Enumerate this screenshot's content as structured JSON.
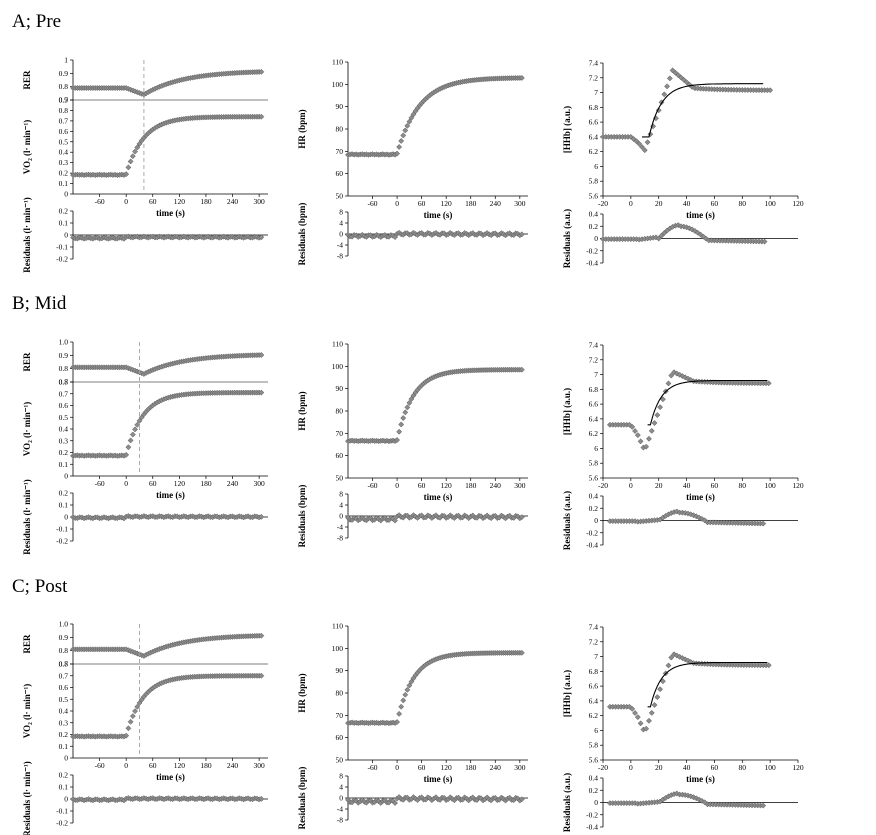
{
  "colors": {
    "marker_fill": "#8c8c8c",
    "marker_stroke": "#555555",
    "axis": "#000000",
    "fit": "#000000",
    "dashed": "#a0a0a0"
  },
  "chart_data": [
    {
      "panel_title": "A; Pre",
      "charts": [
        {
          "type": "scatter",
          "name": "RER",
          "ylabel": "RER",
          "ylim": [
            0.7,
            1.0
          ],
          "yticks": [
            "0.7",
            "0.8",
            "0.9",
            "1"
          ],
          "xlim": [
            -120,
            320
          ],
          "xticklabels": [],
          "marker_visible": true,
          "series": [
            {
              "name": "RER",
              "shape": "baseline-dip-rise",
              "base": 0.79,
              "end": 0.92,
              "dip": 0.05,
              "x_start": -120,
              "x_end": 305
            }
          ]
        },
        {
          "type": "scatter",
          "name": "VO2",
          "ylabel": "VO₂ (l· min⁻¹)",
          "ylim": [
            0,
            0.9
          ],
          "yticks": [
            "0",
            "0.1",
            "0.2",
            "0.3",
            "0.4",
            "0.5",
            "0.6",
            "0.7",
            "0.8",
            "0.9"
          ],
          "xlim": [
            -120,
            320
          ],
          "xticks": [
            -60,
            0,
            60,
            120,
            180,
            240,
            300
          ],
          "xlabel": "time (s)",
          "dashed_line_x": 40,
          "marker_visible": true,
          "series": [
            {
              "name": "VO2",
              "shape": "mono-exp",
              "base": 0.19,
              "end": 0.74,
              "x_on": 0,
              "tau": 40,
              "x_start": -120,
              "x_end": 305
            }
          ]
        },
        {
          "type": "scatter",
          "name": "VO2 residuals",
          "ylabel": "Residuals (l· min⁻¹)",
          "ylim": [
            -0.2,
            0.2
          ],
          "yticks": [
            "0.2",
            "0.1",
            "0",
            "-0.1",
            "-0.2"
          ],
          "xlim": [
            -120,
            320
          ],
          "marker_visible": true,
          "series": [
            {
              "name": "residuals",
              "shape": "noise",
              "base": -0.015,
              "amp": 0.01,
              "x_start": -120,
              "x_end": 305
            }
          ]
        },
        {
          "type": "scatter",
          "name": "HR",
          "ylabel": "HR (bpm)",
          "ylim": [
            50,
            110
          ],
          "yticks": [
            "50",
            "60",
            "70",
            "80",
            "90",
            "100",
            "110"
          ],
          "xlim": [
            -120,
            320
          ],
          "xticks": [
            -60,
            0,
            60,
            120,
            180,
            240,
            300
          ],
          "xlabel": "time (s)",
          "marker_visible": true,
          "series": [
            {
              "name": "HR",
              "shape": "mono-exp",
              "base": 69,
              "end": 103,
              "x_on": 0,
              "tau": 55,
              "x_start": -120,
              "x_end": 305
            }
          ]
        },
        {
          "type": "scatter",
          "name": "HR residuals",
          "ylabel": "Residuals (bpm)",
          "ylim": [
            -8,
            8
          ],
          "yticks": [
            "8",
            "4",
            "0",
            "-4",
            "-8"
          ],
          "xlim": [
            -120,
            320
          ],
          "marker_visible": true,
          "series": [
            {
              "name": "residuals",
              "shape": "noise",
              "base": 0.2,
              "amp": 0.8,
              "x_start": -120,
              "x_end": 305
            }
          ]
        },
        {
          "type": "scatter",
          "name": "HHb",
          "ylabel": "[HHb] (a.u.)",
          "ylim": [
            5.6,
            7.4
          ],
          "yticks": [
            "5.6",
            "5.8",
            "6",
            "6.2",
            "6.4",
            "6.6",
            "6.8",
            "7",
            "7.2",
            "7.4"
          ],
          "xlim": [
            -20,
            120
          ],
          "xticks": [
            -20,
            0,
            20,
            40,
            60,
            80,
            100,
            120
          ],
          "xlabel": "time (s)",
          "marker_visible": true,
          "series": [
            {
              "name": "HHb",
              "shape": "hhb-overshoot",
              "base": 6.4,
              "dip": 6.22,
              "peak": 7.3,
              "end": 7.03,
              "x_start": -20,
              "x_end": 100
            },
            {
              "name": "fit",
              "line": true,
              "shape": "hhb-fit",
              "base": 6.4,
              "end": 7.12,
              "x_on": 13,
              "tau": 9,
              "x_start": 8,
              "x_end": 95
            }
          ]
        },
        {
          "type": "scatter",
          "name": "HHb residuals",
          "ylabel": "Residuals (a.u.)",
          "ylim": [
            -0.4,
            0.4
          ],
          "yticks": [
            "0.4",
            "0.2",
            "0",
            "-0.2",
            "-0.4"
          ],
          "xlim": [
            -20,
            120
          ],
          "marker_visible": true,
          "zero_line": true,
          "series": [
            {
              "name": "residuals",
              "shape": "hhb-res",
              "amp": 0.22,
              "x_start": -20,
              "x_end": 96
            }
          ]
        }
      ]
    },
    {
      "panel_title": "B; Mid",
      "charts": [
        {
          "type": "scatter",
          "name": "RER",
          "ylabel": "RER",
          "ylim": [
            0.7,
            1.0
          ],
          "yticks": [
            "0.7",
            "0.8",
            "0.9",
            "1.0"
          ],
          "xlim": [
            -120,
            320
          ],
          "xticklabels": [],
          "marker_visible": true,
          "series": [
            {
              "name": "RER",
              "shape": "baseline-dip-rise",
              "base": 0.81,
              "end": 0.91,
              "dip": 0.05,
              "x_start": -120,
              "x_end": 305
            }
          ]
        },
        {
          "type": "scatter",
          "name": "VO2",
          "ylabel": "VO₂ (l· min⁻¹)",
          "ylim": [
            0,
            0.8
          ],
          "yticks": [
            "0",
            "0.1",
            "0.2",
            "0.3",
            "0.4",
            "0.5",
            "0.6",
            "0.7",
            "0.8"
          ],
          "xlim": [
            -120,
            320
          ],
          "xticks": [
            -60,
            0,
            60,
            120,
            180,
            240,
            300
          ],
          "xlabel": "time (s)",
          "dashed_line_x": 30,
          "marker_visible": true,
          "series": [
            {
              "name": "VO2",
              "shape": "mono-exp",
              "base": 0.18,
              "end": 0.71,
              "x_on": 0,
              "tau": 38,
              "x_start": -120,
              "x_end": 305
            }
          ]
        },
        {
          "type": "scatter",
          "name": "VO2 residuals",
          "ylabel": "Residuals (l· min⁻¹)",
          "ylim": [
            -0.2,
            0.2
          ],
          "yticks": [
            "0.2",
            "0.1",
            "0",
            "-0.1",
            "-0.2"
          ],
          "xlim": [
            -120,
            320
          ],
          "marker_visible": true,
          "series": [
            {
              "name": "residuals",
              "shape": "noise",
              "base": 0.005,
              "amp": 0.01,
              "x_start": -120,
              "x_end": 305
            }
          ]
        },
        {
          "type": "scatter",
          "name": "HR",
          "ylabel": "HR (bpm)",
          "ylim": [
            50,
            110
          ],
          "yticks": [
            "50",
            "60",
            "70",
            "80",
            "90",
            "100",
            "110"
          ],
          "xlim": [
            -120,
            320
          ],
          "xticks": [
            -60,
            0,
            60,
            120,
            180,
            240,
            300
          ],
          "xlabel": "time (s)",
          "marker_visible": true,
          "series": [
            {
              "name": "HR",
              "shape": "mono-exp",
              "base": 67,
              "end": 98.5,
              "x_on": 0,
              "tau": 40,
              "x_start": -120,
              "x_end": 305
            }
          ]
        },
        {
          "type": "scatter",
          "name": "HR residuals",
          "ylabel": "Residuals (bpm)",
          "ylim": [
            -8,
            8
          ],
          "yticks": [
            "8",
            "4",
            "0",
            "-4",
            "-8"
          ],
          "xlim": [
            -120,
            320
          ],
          "marker_visible": true,
          "series": [
            {
              "name": "residuals",
              "shape": "noise",
              "base": 0.0,
              "amp": 1.0,
              "x_start": -120,
              "x_end": 305
            }
          ]
        },
        {
          "type": "scatter",
          "name": "HHb",
          "ylabel": "[HHb] (a.u.)",
          "ylim": [
            5.6,
            7.4
          ],
          "yticks": [
            "5.6",
            "5.8",
            "6",
            "6.2",
            "6.4",
            "6.6",
            "6.8",
            "7",
            "7.2",
            "7.4"
          ],
          "xlim": [
            -20,
            120
          ],
          "xticks": [
            -20,
            0,
            20,
            40,
            60,
            80,
            100,
            120
          ],
          "xlabel": "time (s)",
          "marker_visible": true,
          "series": [
            {
              "name": "HHb",
              "shape": "hhb-overshoot",
              "base": 6.32,
              "dip": 5.97,
              "peak": 7.04,
              "end": 6.88,
              "x_start": -15,
              "x_end": 100
            },
            {
              "name": "fit",
              "line": true,
              "shape": "hhb-fit",
              "base": 6.32,
              "end": 6.92,
              "x_on": 14,
              "tau": 8,
              "x_start": 12,
              "x_end": 98
            }
          ]
        },
        {
          "type": "scatter",
          "name": "HHb residuals",
          "ylabel": "Residuals (a.u.)",
          "ylim": [
            -0.4,
            0.4
          ],
          "yticks": [
            "0.4",
            "0.2",
            "0",
            "-0.2",
            "-0.4"
          ],
          "xlim": [
            -20,
            120
          ],
          "marker_visible": true,
          "zero_line": true,
          "series": [
            {
              "name": "residuals",
              "shape": "hhb-res",
              "amp": 0.15,
              "x_start": -15,
              "x_end": 96
            }
          ]
        }
      ]
    },
    {
      "panel_title": "C; Post",
      "charts": [
        {
          "type": "scatter",
          "name": "RER",
          "ylabel": "RER",
          "ylim": [
            0.7,
            1.0
          ],
          "yticks": [
            "0.7",
            "0.8",
            "0.9",
            "1.0"
          ],
          "xlim": [
            -120,
            320
          ],
          "xticklabels": [],
          "marker_visible": true,
          "series": [
            {
              "name": "RER",
              "shape": "baseline-dip-rise",
              "base": 0.81,
              "end": 0.92,
              "dip": 0.05,
              "x_start": -120,
              "x_end": 305
            }
          ]
        },
        {
          "type": "scatter",
          "name": "VO2",
          "ylabel": "VO₂ (l· min⁻¹)",
          "ylim": [
            0,
            0.8
          ],
          "yticks": [
            "0",
            "0.1",
            "0.2",
            "0.3",
            "0.4",
            "0.5",
            "0.6",
            "0.7",
            "0.8"
          ],
          "xlim": [
            -120,
            320
          ],
          "xticks": [
            -60,
            0,
            60,
            120,
            180,
            240,
            300
          ],
          "xlabel": "time (s)",
          "dashed_line_x": 30,
          "marker_visible": true,
          "series": [
            {
              "name": "VO2",
              "shape": "mono-exp",
              "base": 0.19,
              "end": 0.7,
              "x_on": 0,
              "tau": 38,
              "x_start": -120,
              "x_end": 305
            }
          ]
        },
        {
          "type": "scatter",
          "name": "VO2 residuals",
          "ylabel": "Residuals (l· min⁻¹)",
          "ylim": [
            -0.2,
            0.2
          ],
          "yticks": [
            "0.2",
            "0.1",
            "0",
            "-0.1",
            "-0.2"
          ],
          "xlim": [
            -120,
            320
          ],
          "marker_visible": true,
          "series": [
            {
              "name": "residuals",
              "shape": "noise",
              "base": 0.005,
              "amp": 0.01,
              "x_start": -120,
              "x_end": 305
            }
          ]
        },
        {
          "type": "scatter",
          "name": "HR",
          "ylabel": "HR (bpm)",
          "ylim": [
            50,
            110
          ],
          "yticks": [
            "50",
            "60",
            "70",
            "80",
            "90",
            "100",
            "110"
          ],
          "xlim": [
            -120,
            320
          ],
          "xticks": [
            -60,
            0,
            60,
            120,
            180,
            240,
            300
          ],
          "xlabel": "time (s)",
          "marker_visible": true,
          "series": [
            {
              "name": "HR",
              "shape": "mono-exp",
              "base": 67,
              "end": 98,
              "x_on": 0,
              "tau": 40,
              "x_start": -120,
              "x_end": 305
            }
          ]
        },
        {
          "type": "scatter",
          "name": "HR residuals",
          "ylabel": "Residuals (bpm)",
          "ylim": [
            -8,
            8
          ],
          "yticks": [
            "8",
            "4",
            "0",
            "-4",
            "-8"
          ],
          "xlim": [
            -120,
            320
          ],
          "marker_visible": true,
          "series": [
            {
              "name": "residuals",
              "shape": "noise",
              "base": 0.0,
              "amp": 1.1,
              "x_start": -120,
              "x_end": 305
            }
          ]
        },
        {
          "type": "scatter",
          "name": "HHb",
          "ylabel": "[HHb] (a.u.)",
          "ylim": [
            5.6,
            7.4
          ],
          "yticks": [
            "5.6",
            "5.8",
            "6",
            "6.2",
            "6.4",
            "6.6",
            "6.8",
            "7",
            "7.2",
            "7.4"
          ],
          "xlim": [
            -20,
            120
          ],
          "xticks": [
            -20,
            0,
            20,
            40,
            60,
            80,
            100,
            120
          ],
          "xlabel": "time (s)",
          "marker_visible": true,
          "series": [
            {
              "name": "HHb",
              "shape": "hhb-overshoot",
              "base": 6.32,
              "dip": 5.97,
              "peak": 7.04,
              "end": 6.88,
              "x_start": -15,
              "x_end": 100
            },
            {
              "name": "fit",
              "line": true,
              "shape": "hhb-fit",
              "base": 6.32,
              "end": 6.92,
              "x_on": 14,
              "tau": 8,
              "x_start": 12,
              "x_end": 98
            }
          ]
        },
        {
          "type": "scatter",
          "name": "HHb residuals",
          "ylabel": "Residuals (a.u.)",
          "ylim": [
            -0.4,
            0.4
          ],
          "yticks": [
            "0.4",
            "0.2",
            "0",
            "-0.2",
            "-0.4"
          ],
          "xlim": [
            -20,
            120
          ],
          "marker_visible": true,
          "zero_line": true,
          "series": [
            {
              "name": "residuals",
              "shape": "hhb-res",
              "amp": 0.15,
              "x_start": -15,
              "x_end": 96
            }
          ]
        }
      ]
    }
  ]
}
